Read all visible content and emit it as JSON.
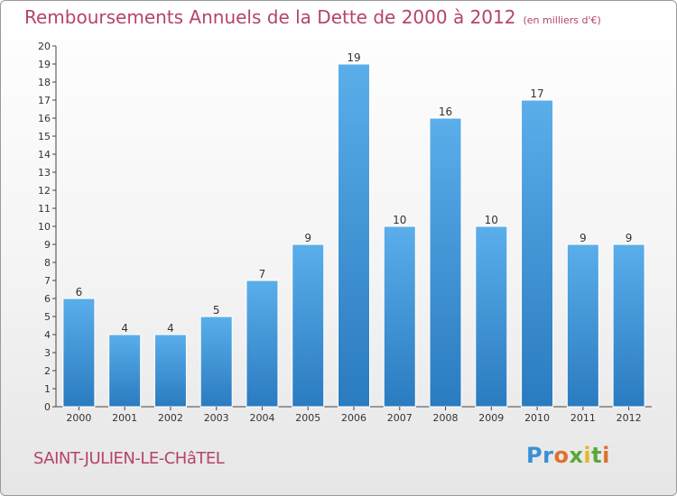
{
  "chart_data": {
    "type": "bar",
    "title": "Remboursements Annuels de la Dette de 2000 à 2012",
    "unit_label": "(en milliers d'€)",
    "categories": [
      "2000",
      "2001",
      "2002",
      "2003",
      "2004",
      "2005",
      "2006",
      "2007",
      "2008",
      "2009",
      "2010",
      "2011",
      "2012"
    ],
    "values": [
      6,
      4,
      4,
      5,
      7,
      9,
      19,
      10,
      16,
      10,
      17,
      9,
      9
    ],
    "ylim": [
      0,
      20
    ],
    "yticks": [
      0,
      1,
      2,
      3,
      4,
      5,
      6,
      7,
      8,
      9,
      10,
      11,
      12,
      13,
      14,
      15,
      16,
      17,
      18,
      19,
      20
    ],
    "grid": false,
    "bar_color_top": "#5aaeea",
    "bar_color_bottom": "#2a7bc0"
  },
  "footer": {
    "place": "SAINT-JULIEN-LE-CHâTEL",
    "logo": "Proxiti"
  },
  "colors": {
    "title": "#b5446a",
    "axis": "#333333"
  }
}
